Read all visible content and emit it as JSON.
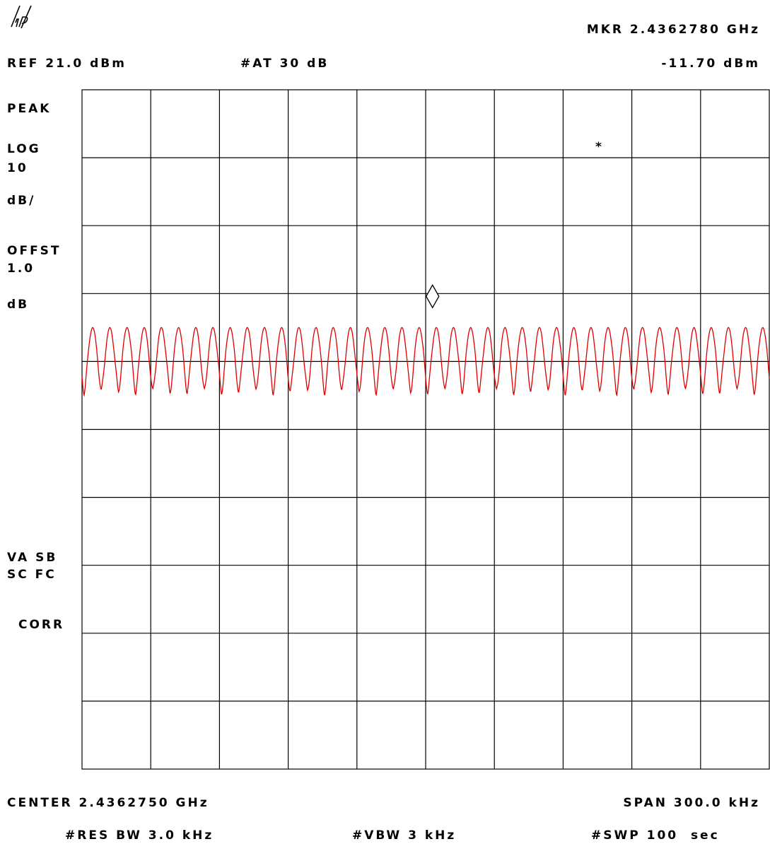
{
  "logo": "hp",
  "header": {
    "marker_freq": "MKR 2.4362780 GHz",
    "ref_level": "REF 21.0 dBm",
    "attenuation": "#AT 30 dB",
    "marker_level": "-11.70 dBm"
  },
  "side_labels": {
    "detector": "PEAK",
    "scale_log": "LOG",
    "scale_value": "10",
    "scale_unit": "dB/",
    "offset_label": "OFFST",
    "offset_value": "1.0",
    "offset_unit": "dB",
    "va_sb": "VA SB",
    "sc_fc": "SC FC",
    "corr": "CORR"
  },
  "footer": {
    "center": "CENTER 2.4362750 GHz",
    "span": "SPAN 300.0 kHz",
    "res_bw": "#RES BW 3.0 kHz",
    "vbw": "#VBW 3 kHz",
    "sweep": "#SWP 100  sec"
  },
  "annotation": {
    "star": "*"
  },
  "colors": {
    "trace": "#e00000",
    "grid": "#000000",
    "background": "#ffffff"
  },
  "chart_data": {
    "type": "line",
    "x_unit": "GHz",
    "y_unit": "dBm",
    "xlim": [
      2.436125,
      2.436425
    ],
    "ylim": [
      -79.0,
      21.0
    ],
    "grid": true,
    "x_divisions": 10,
    "y_divisions": 10,
    "trace": {
      "peak_count": 40,
      "peak_level_dbm": -14.0,
      "trough_level_dbm": -23.0,
      "min_trough_dbm": -24.0
    },
    "marker": {
      "x": 2.436278,
      "y": -11.7,
      "symbol": "diamond"
    }
  }
}
